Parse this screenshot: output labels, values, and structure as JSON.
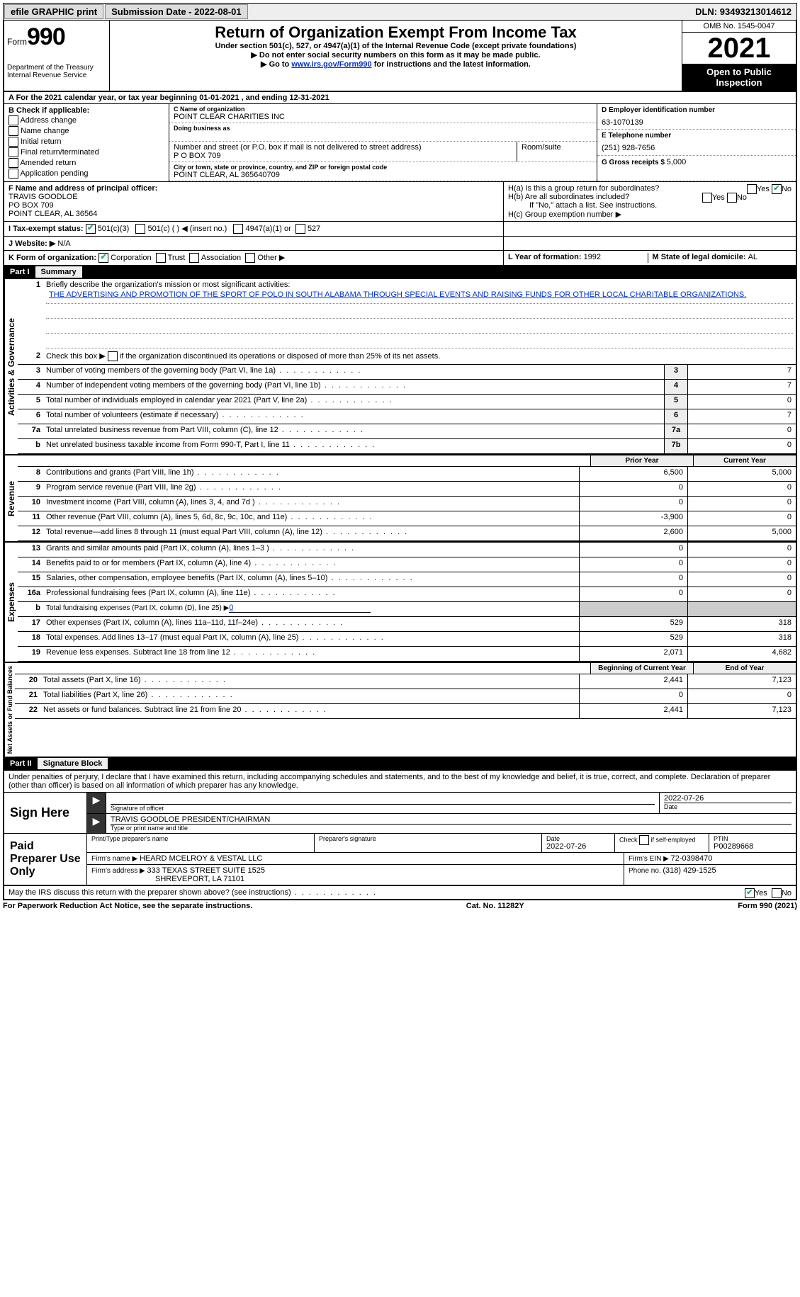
{
  "topbar": {
    "efile": "efile GRAPHIC print",
    "sub_label": "Submission Date - ",
    "sub_date": "2022-08-01",
    "dln_label": "DLN: ",
    "dln": "93493213014612"
  },
  "header": {
    "form_word": "Form",
    "form_num": "990",
    "dept": "Department of the Treasury\nInternal Revenue Service",
    "title": "Return of Organization Exempt From Income Tax",
    "sub1": "Under section 501(c), 527, or 4947(a)(1) of the Internal Revenue Code (except private foundations)",
    "sub2": "Do not enter social security numbers on this form as it may be made public.",
    "sub3_a": "Go to ",
    "sub3_link": "www.irs.gov/Form990",
    "sub3_b": " for instructions and the latest information.",
    "omb": "OMB No. 1545-0047",
    "year": "2021",
    "open": "Open to Public Inspection"
  },
  "sectionA": {
    "text": "A For the 2021 calendar year, or tax year beginning 01-01-2021    , and ending 12-31-2021"
  },
  "B": {
    "hdr": "B Check if applicable:",
    "opts": [
      "Address change",
      "Name change",
      "Initial return",
      "Final return/terminated",
      "Amended return",
      "Application pending"
    ]
  },
  "C": {
    "name_lbl": "C Name of organization",
    "name": "POINT CLEAR CHARITIES INC",
    "dba_lbl": "Doing business as",
    "dba": "",
    "addr_lbl": "Number and street (or P.O. box if mail is not delivered to street address)",
    "addr": "P O BOX 709",
    "room_lbl": "Room/suite",
    "city_lbl": "City or town, state or province, country, and ZIP or foreign postal code",
    "city": "POINT CLEAR, AL  365640709"
  },
  "D": {
    "ein_lbl": "D Employer identification number",
    "ein": "63-1070139",
    "tel_lbl": "E Telephone number",
    "tel": "(251) 928-7656",
    "gross_lbl": "G Gross receipts $ ",
    "gross": "5,000"
  },
  "F": {
    "lbl": "F  Name and address of principal officer:",
    "name": "TRAVIS GOODLOE",
    "addr1": "PO BOX 709",
    "addr2": "POINT CLEAR, AL  36564"
  },
  "H": {
    "a": "H(a)  Is this a group return for subordinates?",
    "b": "H(b)  Are all subordinates included?",
    "b2": "If \"No,\" attach a list. See instructions.",
    "c": "H(c)  Group exemption number ▶",
    "yes": "Yes",
    "no": "No"
  },
  "I": {
    "lbl": "I  Tax-exempt status:",
    "o1": "501(c)(3)",
    "o2": "501(c) (   ) ◀ (insert no.)",
    "o3": "4947(a)(1) or",
    "o4": "527"
  },
  "J": {
    "lbl": "J  Website: ▶",
    "val": "N/A"
  },
  "K": {
    "lbl": "K Form of organization:",
    "o1": "Corporation",
    "o2": "Trust",
    "o3": "Association",
    "o4": "Other ▶"
  },
  "L": {
    "lbl": "L Year of formation: ",
    "val": "1992"
  },
  "M": {
    "lbl": "M State of legal domicile: ",
    "val": "AL"
  },
  "part1": {
    "hdr": "Part I",
    "title": "Summary"
  },
  "summary": {
    "l1_lbl": "Briefly describe the organization's mission or most significant activities:",
    "l1_txt": "THE ADVERTISING AND PROMOTION OF THE SPORT OF POLO IN SOUTH ALABAMA THROUGH SPECIAL EVENTS AND RAISING FUNDS FOR OTHER LOCAL CHARITABLE ORGANIZATIONS.",
    "l2": "Check this box ▶        if the organization discontinued its operations or disposed of more than 25% of its net assets.",
    "tabs": {
      "act": "Activities & Governance",
      "rev": "Revenue",
      "exp": "Expenses",
      "net": "Net Assets or Fund Balances"
    },
    "lines_single": [
      {
        "n": "3",
        "t": "Number of voting members of the governing body (Part VI, line 1a)",
        "b": "3",
        "v": "7"
      },
      {
        "n": "4",
        "t": "Number of independent voting members of the governing body (Part VI, line 1b)",
        "b": "4",
        "v": "7"
      },
      {
        "n": "5",
        "t": "Total number of individuals employed in calendar year 2021 (Part V, line 2a)",
        "b": "5",
        "v": "0"
      },
      {
        "n": "6",
        "t": "Total number of volunteers (estimate if necessary)",
        "b": "6",
        "v": "7"
      },
      {
        "n": "7a",
        "t": "Total unrelated business revenue from Part VIII, column (C), line 12",
        "b": "7a",
        "v": "0"
      },
      {
        "n": "b",
        "t": "Net unrelated business taxable income from Form 990-T, Part I, line 11",
        "b": "7b",
        "v": "0"
      }
    ],
    "col_prior": "Prior Year",
    "col_curr": "Current Year",
    "rev": [
      {
        "n": "8",
        "t": "Contributions and grants (Part VIII, line 1h)",
        "p": "6,500",
        "c": "5,000"
      },
      {
        "n": "9",
        "t": "Program service revenue (Part VIII, line 2g)",
        "p": "0",
        "c": "0"
      },
      {
        "n": "10",
        "t": "Investment income (Part VIII, column (A), lines 3, 4, and 7d )",
        "p": "0",
        "c": "0"
      },
      {
        "n": "11",
        "t": "Other revenue (Part VIII, column (A), lines 5, 6d, 8c, 9c, 10c, and 11e)",
        "p": "-3,900",
        "c": "0"
      },
      {
        "n": "12",
        "t": "Total revenue—add lines 8 through 11 (must equal Part VIII, column (A), line 12)",
        "p": "2,600",
        "c": "5,000"
      }
    ],
    "exp": [
      {
        "n": "13",
        "t": "Grants and similar amounts paid (Part IX, column (A), lines 1–3 )",
        "p": "0",
        "c": "0"
      },
      {
        "n": "14",
        "t": "Benefits paid to or for members (Part IX, column (A), line 4)",
        "p": "0",
        "c": "0"
      },
      {
        "n": "15",
        "t": "Salaries, other compensation, employee benefits (Part IX, column (A), lines 5–10)",
        "p": "0",
        "c": "0"
      },
      {
        "n": "16a",
        "t": "Professional fundraising fees (Part IX, column (A), line 11e)",
        "p": "0",
        "c": "0"
      },
      {
        "n": "b",
        "t": "Total fundraising expenses (Part IX, column (D), line 25) ▶",
        "p": "shade",
        "c": "shade",
        "extra": "0"
      },
      {
        "n": "17",
        "t": "Other expenses (Part IX, column (A), lines 11a–11d, 11f–24e)",
        "p": "529",
        "c": "318"
      },
      {
        "n": "18",
        "t": "Total expenses. Add lines 13–17 (must equal Part IX, column (A), line 25)",
        "p": "529",
        "c": "318"
      },
      {
        "n": "19",
        "t": "Revenue less expenses. Subtract line 18 from line 12",
        "p": "2,071",
        "c": "4,682"
      }
    ],
    "col_beg": "Beginning of Current Year",
    "col_end": "End of Year",
    "net": [
      {
        "n": "20",
        "t": "Total assets (Part X, line 16)",
        "p": "2,441",
        "c": "7,123"
      },
      {
        "n": "21",
        "t": "Total liabilities (Part X, line 26)",
        "p": "0",
        "c": "0"
      },
      {
        "n": "22",
        "t": "Net assets or fund balances. Subtract line 21 from line 20",
        "p": "2,441",
        "c": "7,123"
      }
    ]
  },
  "part2": {
    "hdr": "Part II",
    "title": "Signature Block"
  },
  "sig": {
    "decl": "Under penalties of perjury, I declare that I have examined this return, including accompanying schedules and statements, and to the best of my knowledge and belief, it is true, correct, and complete. Declaration of preparer (other than officer) is based on all information of which preparer has any knowledge.",
    "sign_here": "Sign Here",
    "sig_officer": "Signature of officer",
    "sig_date": "2022-07-26",
    "date_lbl": "Date",
    "name": "TRAVIS GOODLOE  PRESIDENT/CHAIRMAN",
    "name_lbl": "Type or print name and title",
    "paid": "Paid Preparer Use Only",
    "prep_name_lbl": "Print/Type preparer's name",
    "prep_sig_lbl": "Preparer's signature",
    "prep_date_lbl": "Date",
    "prep_date": "2022-07-26",
    "self_lbl": "Check          if self-employed",
    "ptin_lbl": "PTIN",
    "ptin": "P00289668",
    "firm_name_lbl": "Firm's name    ▶ ",
    "firm_name": "HEARD MCELROY & VESTAL LLC",
    "firm_ein_lbl": "Firm's EIN ▶ ",
    "firm_ein": "72-0398470",
    "firm_addr_lbl": "Firm's address ▶ ",
    "firm_addr": "333 TEXAS STREET SUITE 1525",
    "firm_city": "SHREVEPORT, LA  71101",
    "phone_lbl": "Phone no. ",
    "phone": "(318) 429-1525",
    "may_irs": "May the IRS discuss this return with the preparer shown above? (see instructions)"
  },
  "footer": {
    "pra": "For Paperwork Reduction Act Notice, see the separate instructions.",
    "cat": "Cat. No. 11282Y",
    "form": "Form 990 (2021)"
  }
}
